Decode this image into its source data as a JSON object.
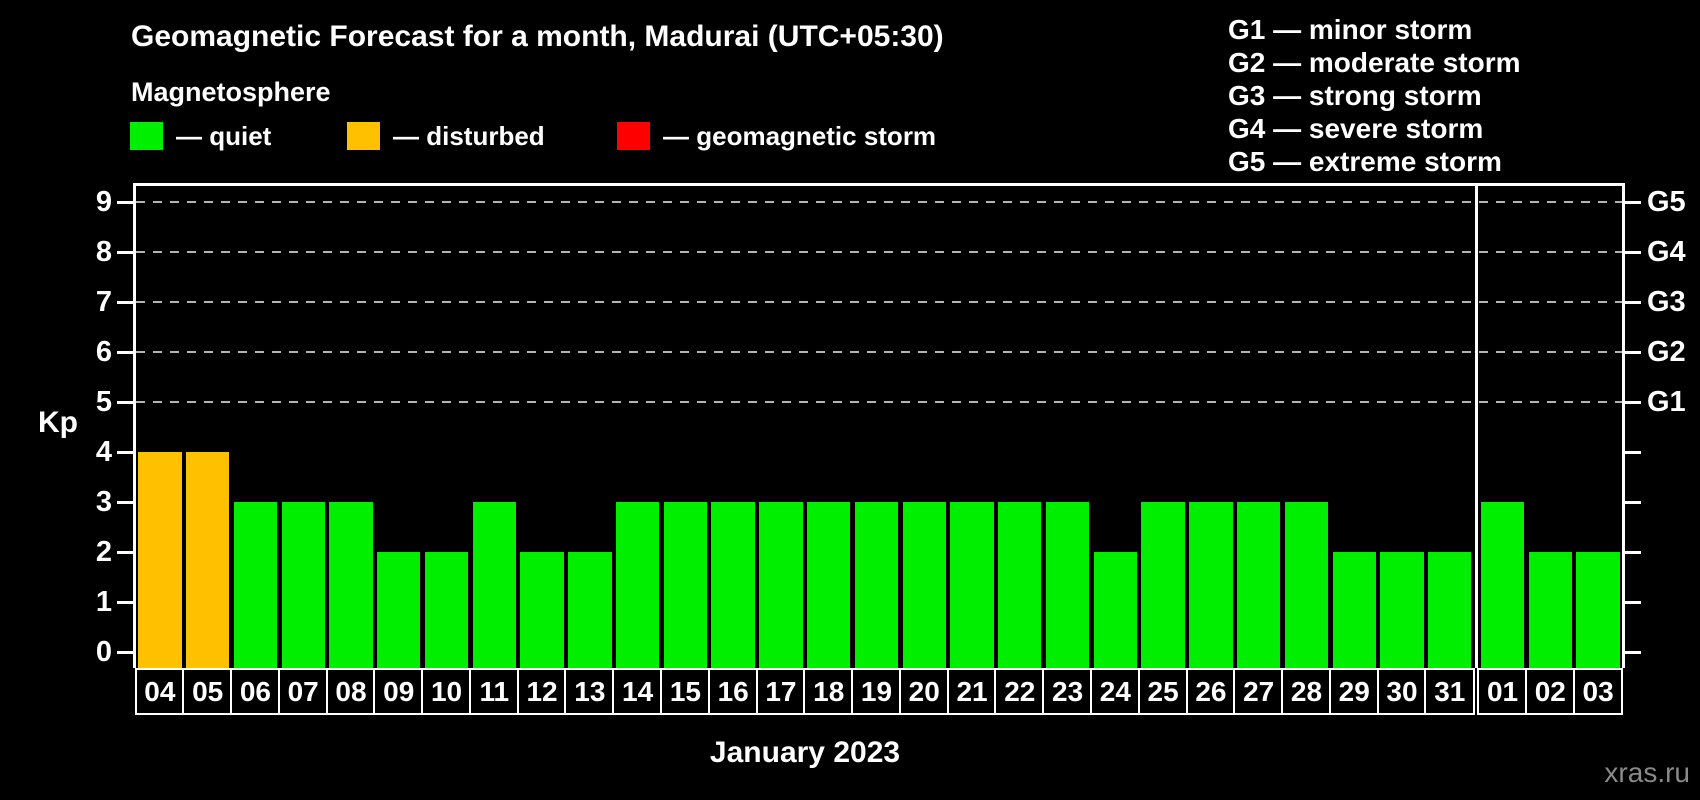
{
  "header": {
    "title": "Geomagnetic Forecast for a month, Madurai (UTC+05:30)",
    "subtitle": "Magnetosphere"
  },
  "legend": {
    "items": [
      {
        "key": "quiet",
        "label": "— quiet",
        "color": "#00ee00"
      },
      {
        "key": "disturbed",
        "label": "— disturbed",
        "color": "#ffc000"
      },
      {
        "key": "storm",
        "label": "— geomagnetic storm",
        "color": "#ff0000"
      }
    ]
  },
  "g_scale_legend": [
    "G1 — minor storm",
    "G2 — moderate storm",
    "G3 — strong storm",
    "G4 — severe storm",
    "G5 — extreme storm"
  ],
  "chart_data": {
    "type": "bar",
    "title": "Geomagnetic Forecast for a month, Madurai (UTC+05:30)",
    "categories": [
      "04",
      "05",
      "06",
      "07",
      "08",
      "09",
      "10",
      "11",
      "12",
      "13",
      "14",
      "15",
      "16",
      "17",
      "18",
      "19",
      "20",
      "21",
      "22",
      "23",
      "24",
      "25",
      "26",
      "27",
      "28",
      "29",
      "30",
      "31",
      "01",
      "02",
      "03"
    ],
    "values": [
      4,
      4,
      3,
      3,
      3,
      2,
      2,
      3,
      2,
      2,
      3,
      3,
      3,
      3,
      3,
      3,
      3,
      3,
      3,
      3,
      2,
      3,
      3,
      3,
      3,
      2,
      2,
      2,
      3,
      2,
      2
    ],
    "statuses": [
      "disturbed",
      "disturbed",
      "quiet",
      "quiet",
      "quiet",
      "quiet",
      "quiet",
      "quiet",
      "quiet",
      "quiet",
      "quiet",
      "quiet",
      "quiet",
      "quiet",
      "quiet",
      "quiet",
      "quiet",
      "quiet",
      "quiet",
      "quiet",
      "quiet",
      "quiet",
      "quiet",
      "quiet",
      "quiet",
      "quiet",
      "quiet",
      "quiet",
      "quiet",
      "quiet",
      "quiet"
    ],
    "ylabel": "Kp",
    "xlabel": "January 2023",
    "ylim": [
      0,
      9
    ],
    "yticks": [
      0,
      1,
      2,
      3,
      4,
      5,
      6,
      7,
      8,
      9
    ],
    "grid_kp_levels": [
      5,
      6,
      7,
      8,
      9
    ],
    "right_axis": [
      {
        "kp": 5,
        "label": "G1"
      },
      {
        "kp": 6,
        "label": "G2"
      },
      {
        "kp": 7,
        "label": "G3"
      },
      {
        "kp": 8,
        "label": "G4"
      },
      {
        "kp": 9,
        "label": "G5"
      }
    ],
    "month_separator_after": "31",
    "legend_position": "top",
    "grid": "dashed horizontal at Kp 5-9",
    "colors": {
      "quiet": "#00ee00",
      "disturbed": "#ffc000",
      "storm": "#ff0000",
      "grid": "#b4b4b4",
      "axis": "#ffffff"
    }
  },
  "footer": {
    "month_label": "January 2023",
    "watermark": "xras.ru"
  }
}
